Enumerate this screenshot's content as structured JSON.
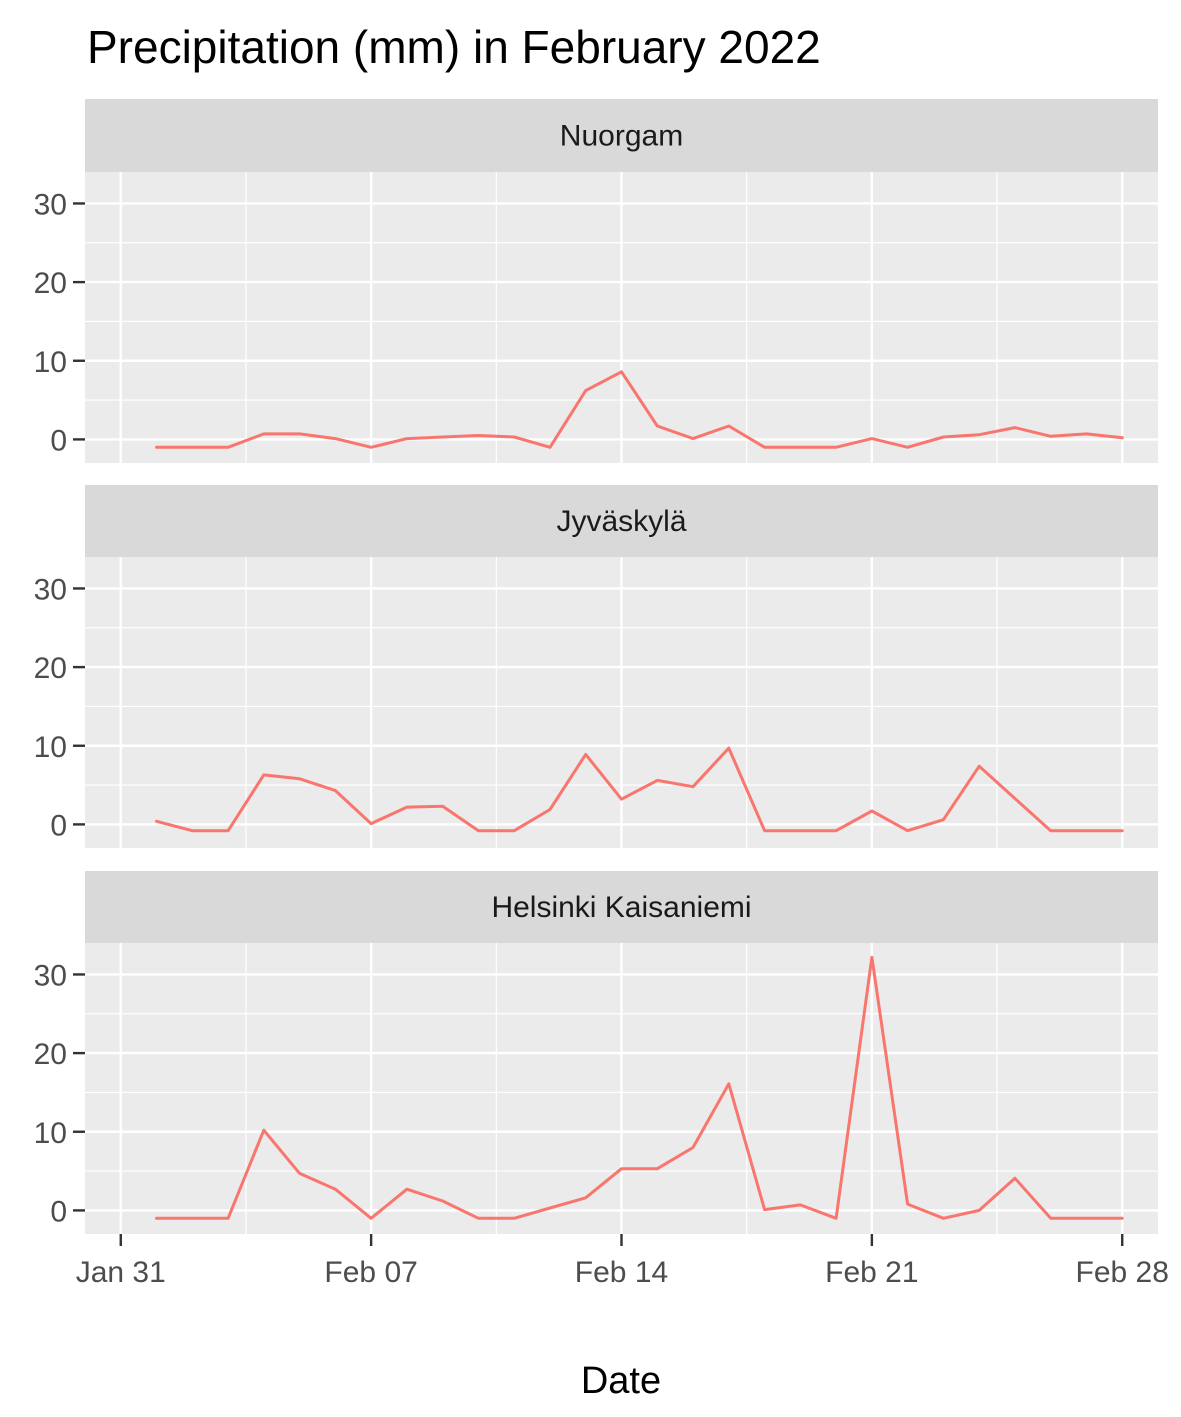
{
  "chart_data": {
    "type": "line",
    "title": "Precipitation (mm) in February 2022",
    "xlabel": "Date",
    "ylabel": "",
    "x_axis": {
      "type": "date",
      "range": [
        "2022-01-30",
        "2022-03-01"
      ],
      "major_ticks": [
        {
          "date": "2022-01-31",
          "label": "Jan 31"
        },
        {
          "date": "2022-02-07",
          "label": "Feb 07"
        },
        {
          "date": "2022-02-14",
          "label": "Feb 14"
        },
        {
          "date": "2022-02-21",
          "label": "Feb 21"
        },
        {
          "date": "2022-02-28",
          "label": "Feb 28"
        }
      ]
    },
    "y_axis": {
      "range": [
        -3,
        34
      ],
      "major_ticks": [
        0,
        10,
        20,
        30
      ],
      "labels": [
        "0",
        "10",
        "20",
        "30"
      ]
    },
    "grid": true,
    "line_color": "#F8766D",
    "x": [
      "2022-02-01",
      "2022-02-02",
      "2022-02-03",
      "2022-02-04",
      "2022-02-05",
      "2022-02-06",
      "2022-02-07",
      "2022-02-08",
      "2022-02-09",
      "2022-02-10",
      "2022-02-11",
      "2022-02-12",
      "2022-02-13",
      "2022-02-14",
      "2022-02-15",
      "2022-02-16",
      "2022-02-17",
      "2022-02-18",
      "2022-02-19",
      "2022-02-20",
      "2022-02-21",
      "2022-02-22",
      "2022-02-23",
      "2022-02-24",
      "2022-02-25",
      "2022-02-26",
      "2022-02-27",
      "2022-02-28"
    ],
    "panels": [
      {
        "name": "Nuorgam",
        "values": [
          -1,
          -1,
          -1,
          0.7,
          0.7,
          0.1,
          -1,
          0.1,
          0.3,
          0.5,
          0.3,
          -1,
          6.2,
          8.6,
          1.7,
          0.1,
          1.7,
          -1,
          -1,
          -1,
          0.1,
          -1,
          0.3,
          0.6,
          1.5,
          0.4,
          0.7,
          0.2
        ]
      },
      {
        "name": "Jyväskylä",
        "values": [
          0.4,
          -0.8,
          -0.8,
          6.3,
          5.8,
          4.3,
          0.1,
          2.2,
          2.3,
          -0.8,
          -0.8,
          1.9,
          8.9,
          3.2,
          5.6,
          4.8,
          9.7,
          -0.8,
          -0.8,
          -0.8,
          1.7,
          -0.8,
          0.6,
          7.4,
          3.3,
          -0.8,
          -0.8,
          -0.8
        ]
      },
      {
        "name": "Helsinki Kaisaniemi",
        "values": [
          -1,
          -1,
          -1,
          10.2,
          4.7,
          2.7,
          -1,
          2.7,
          1.2,
          -1,
          -1,
          0.3,
          1.6,
          5.3,
          5.3,
          8,
          16.1,
          0.1,
          0.7,
          -1,
          32.2,
          0.8,
          -1,
          0,
          4.1,
          -1,
          -1,
          -1
        ]
      }
    ]
  }
}
